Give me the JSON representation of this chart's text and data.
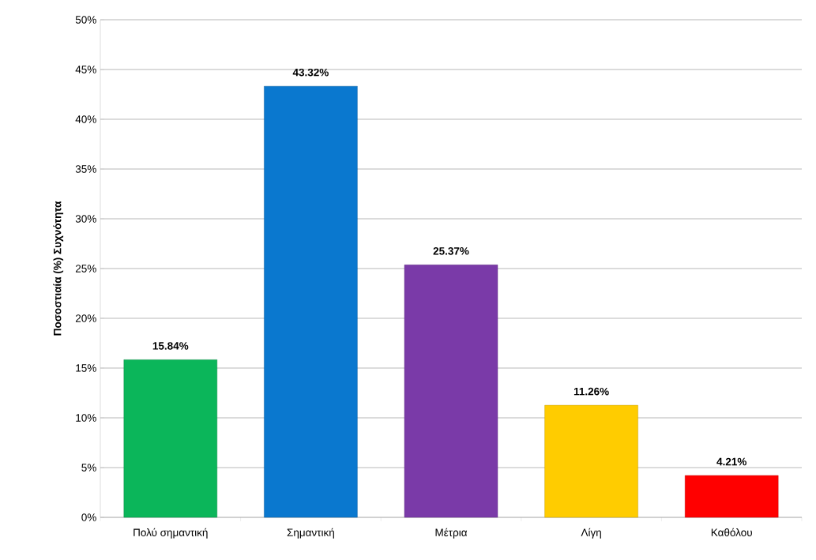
{
  "chart_data": {
    "type": "bar",
    "ylabel": "Ποσοστιαία (%) Συχνότητα",
    "categories": [
      "Πολύ σημαντική",
      "Σημαντική",
      "Μέτρια",
      "Λίγη",
      "Καθόλου"
    ],
    "values": [
      15.84,
      43.32,
      25.37,
      11.26,
      4.21
    ],
    "value_labels": [
      "15.84%",
      "43.32%",
      "25.37%",
      "11.26%",
      "4.21%"
    ],
    "colors": [
      "#0bb65a",
      "#0a78cf",
      "#7a3aa8",
      "#ffcc00",
      "#ff0000"
    ],
    "ylim": [
      0,
      50
    ],
    "yticks": [
      {
        "value": 0,
        "label": "0%"
      },
      {
        "value": 5,
        "label": "5%"
      },
      {
        "value": 10,
        "label": "10%"
      },
      {
        "value": 15,
        "label": "15%"
      },
      {
        "value": 20,
        "label": "20%"
      },
      {
        "value": 25,
        "label": "25%"
      },
      {
        "value": 30,
        "label": "30%"
      },
      {
        "value": 35,
        "label": "35%"
      },
      {
        "value": 40,
        "label": "40%"
      },
      {
        "value": 45,
        "label": "45%"
      },
      {
        "value": 50,
        "label": "50%"
      }
    ],
    "grid": "y"
  }
}
